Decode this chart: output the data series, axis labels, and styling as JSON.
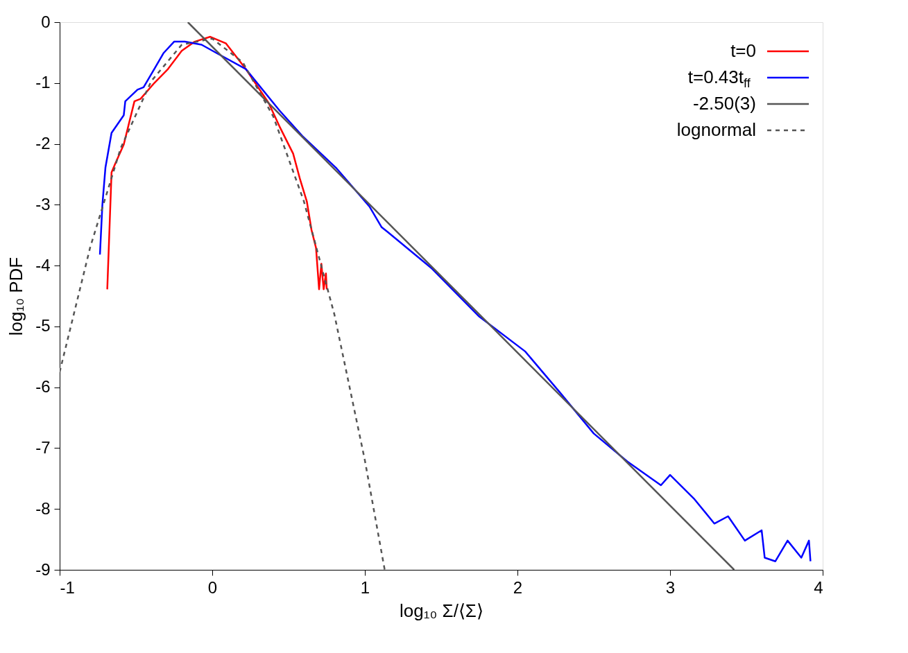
{
  "chart_data": {
    "type": "line",
    "xlabel": "log₁₀ Σ/⟨Σ⟩",
    "ylabel": "log₁₀ PDF",
    "xlim": [
      -1,
      4
    ],
    "ylim": [
      -9,
      0
    ],
    "xticks": [
      -1,
      0,
      1,
      2,
      3,
      4
    ],
    "yticks": [
      -9,
      -8,
      -7,
      -6,
      -5,
      -4,
      -3,
      -2,
      -1,
      0
    ],
    "grid": false,
    "legend": "top right",
    "marker": "none",
    "series": [
      {
        "name": "t=0",
        "color": "#ff0000",
        "line_style": "solid",
        "x": [
          -0.688,
          -0.66,
          -0.635,
          -0.58,
          -0.51,
          -0.47,
          -0.38,
          -0.29,
          -0.2,
          -0.115,
          -0.013,
          0.09,
          0.22,
          0.37,
          0.44,
          0.53,
          0.575,
          0.62,
          0.65,
          0.68,
          0.7,
          0.715,
          0.73,
          0.745,
          0.75
        ],
        "values": [
          -4.39,
          -2.47,
          -2.32,
          -2.01,
          -1.3,
          -1.26,
          -1.0,
          -0.77,
          -0.47,
          -0.32,
          -0.24,
          -0.35,
          -0.77,
          -1.33,
          -1.71,
          -2.16,
          -2.58,
          -2.95,
          -3.41,
          -3.71,
          -4.39,
          -3.97,
          -4.39,
          -4.13,
          -4.39
        ]
      },
      {
        "name": "t=0.43t$_{ff}$",
        "color": "#0000ff",
        "line_style": "solid",
        "x": [
          -0.736,
          -0.72,
          -0.7,
          -0.66,
          -0.58,
          -0.57,
          -0.49,
          -0.45,
          -0.38,
          -0.32,
          -0.25,
          -0.18,
          -0.07,
          0.03,
          0.22,
          0.44,
          0.59,
          0.81,
          1.03,
          1.11,
          1.15,
          1.44,
          1.75,
          2.05,
          2.28,
          2.5,
          2.72,
          2.94,
          3.0,
          3.16,
          3.29,
          3.38,
          3.49,
          3.6,
          3.62,
          3.69,
          3.77,
          3.86,
          3.91,
          3.92
        ],
        "values": [
          -3.82,
          -3.0,
          -2.39,
          -1.82,
          -1.53,
          -1.3,
          -1.11,
          -1.07,
          -0.77,
          -0.51,
          -0.32,
          -0.32,
          -0.37,
          -0.51,
          -0.77,
          -1.45,
          -1.87,
          -2.39,
          -3.03,
          -3.37,
          -3.45,
          -4.05,
          -4.84,
          -5.41,
          -6.09,
          -6.76,
          -7.22,
          -7.61,
          -7.44,
          -7.84,
          -8.24,
          -8.12,
          -8.52,
          -8.35,
          -8.8,
          -8.86,
          -8.52,
          -8.8,
          -8.52,
          -8.86
        ]
      },
      {
        "name": "-2.50(3)",
        "color": "#555555",
        "line_style": "solid",
        "x": [
          -0.16,
          3.42
        ],
        "values": [
          0,
          -9
        ]
      },
      {
        "name": "lognormal",
        "color": "#555555",
        "line_style": "dashed",
        "x": [
          -1,
          -0.8,
          -0.6,
          -0.4,
          -0.2,
          0,
          0.2,
          0.4,
          0.6,
          0.8,
          1.0,
          1.13
        ],
        "values": [
          -5.75,
          -3.7,
          -2.07,
          -0.97,
          -0.37,
          -0.27,
          -0.66,
          -1.55,
          -2.94,
          -4.8,
          -7.2,
          -9.0
        ]
      }
    ]
  }
}
